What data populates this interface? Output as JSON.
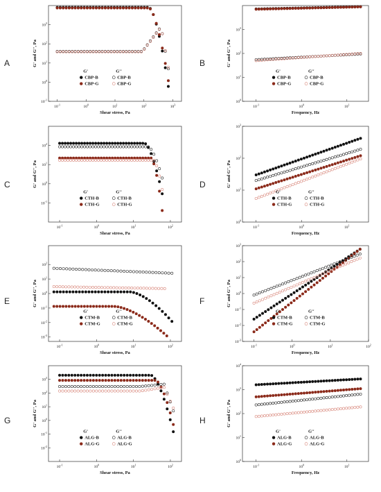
{
  "figure": {
    "colors": {
      "B_filled": "#111111",
      "G_filled": "#8b2a1a",
      "B_open": "#222222",
      "G_open": "#d8867a"
    },
    "legend_headers": [
      "G'",
      "G''"
    ],
    "panel_labels": [
      "A",
      "B",
      "C",
      "D",
      "E",
      "F",
      "G",
      "H"
    ]
  },
  "chart_data": [
    {
      "panel": "A",
      "type": "scatter",
      "xscale": "log",
      "yscale": "log",
      "xlabel": "Shear stress, Pa",
      "ylabel": "G' and G'', Pa",
      "xlim": [
        0.05,
        2000
      ],
      "ylim": [
        0.1,
        10000
      ],
      "xticks": [
        "10^-1",
        "10^0",
        "10^1",
        "10^2",
        "10^3"
      ],
      "yticks": [
        "10^-1",
        "10^0",
        "10^1",
        "10^2",
        "10^3"
      ],
      "legend": [
        "CBP-B",
        "CBP-G"
      ],
      "series": [
        {
          "name": "CBP-B",
          "modulus": "G'",
          "x_range": [
            0.1,
            700
          ],
          "plateau": 8000,
          "drop_start": 150,
          "end_value": 0.6
        },
        {
          "name": "CBP-G",
          "modulus": "G'",
          "x_range": [
            0.1,
            700
          ],
          "plateau": 7500,
          "drop_start": 150,
          "end_value": 1.2
        },
        {
          "name": "CBP-B",
          "modulus": "G''",
          "x_range": [
            0.1,
            700
          ],
          "plateau": 40,
          "rise_to": 800,
          "end_value": 5
        },
        {
          "name": "CBP-G",
          "modulus": "G''",
          "x_range": [
            0.1,
            700
          ],
          "plateau": 38,
          "rise_to": 750,
          "end_value": 6
        }
      ]
    },
    {
      "panel": "B",
      "type": "scatter",
      "xscale": "log",
      "yscale": "log",
      "xlabel": "Frequency, Hz",
      "ylabel": "G' and G'', Pa",
      "xlim": [
        0.05,
        30
      ],
      "ylim": [
        1,
        10000
      ],
      "xticks": [
        "10^-1",
        "10^0",
        "10^1"
      ],
      "yticks": [
        "10^0",
        "10^1",
        "10^2",
        "10^3"
      ],
      "legend": [
        "CBP-B",
        "CBP-G"
      ],
      "series": [
        {
          "name": "CBP-B",
          "modulus": "G'",
          "x_range": [
            0.1,
            20
          ],
          "y_range": [
            7200,
            9000
          ]
        },
        {
          "name": "CBP-G",
          "modulus": "G'",
          "x_range": [
            0.1,
            20
          ],
          "y_range": [
            7000,
            8800
          ]
        },
        {
          "name": "CBP-B",
          "modulus": "G''",
          "x_range": [
            0.1,
            20
          ],
          "y_range": [
            55,
            95
          ]
        },
        {
          "name": "CBP-G",
          "modulus": "G''",
          "x_range": [
            0.1,
            20
          ],
          "y_range": [
            50,
            100
          ]
        }
      ]
    },
    {
      "panel": "C",
      "type": "scatter",
      "xscale": "log",
      "yscale": "log",
      "xlabel": "Shear stress, Pa",
      "ylabel": "G' and G'', Pa",
      "xlim": [
        0.05,
        200
      ],
      "ylim": [
        0.01,
        1000
      ],
      "xticks": [
        "10^-1",
        "10^0",
        "10^1",
        "10^2"
      ],
      "yticks": [
        "10^-1",
        "10^0",
        "10^1",
        "10^2"
      ],
      "legend": [
        "CTH-B",
        "CTH-G"
      ],
      "series": [
        {
          "name": "CTH-B",
          "modulus": "G'",
          "x_range": [
            0.1,
            60
          ],
          "plateau": 130,
          "drop_start": 20,
          "end_value": 0.3
        },
        {
          "name": "CTH-G",
          "modulus": "G'",
          "x_range": [
            0.1,
            60
          ],
          "plateau": 22,
          "drop_start": 30,
          "end_value": 0.04
        },
        {
          "name": "CTH-B",
          "modulus": "G''",
          "x_range": [
            0.1,
            60
          ],
          "plateau": 85,
          "drop_start": 25,
          "end_value": 2
        },
        {
          "name": "CTH-G",
          "modulus": "G''",
          "x_range": [
            0.1,
            60
          ],
          "plateau": 17,
          "drop_start": 35,
          "end_value": 0.5
        }
      ]
    },
    {
      "panel": "D",
      "type": "scatter",
      "xscale": "log",
      "yscale": "log",
      "xlabel": "Frequency, Hz",
      "ylabel": "G' and G'', Pa",
      "xlim": [
        0.05,
        30
      ],
      "ylim": [
        1,
        1000
      ],
      "xticks": [
        "10^-1",
        "10^0",
        "10^1"
      ],
      "yticks": [
        "10^0",
        "10^1",
        "10^2",
        "10^3"
      ],
      "legend": [
        "CTH-B",
        "CTH-G"
      ],
      "series": [
        {
          "name": "CTH-B",
          "modulus": "G'",
          "x_range": [
            0.1,
            20
          ],
          "y_range": [
            30,
            420
          ]
        },
        {
          "name": "CTH-B",
          "modulus": "G''",
          "x_range": [
            0.1,
            20
          ],
          "y_range": [
            20,
            190
          ]
        },
        {
          "name": "CTH-G",
          "modulus": "G'",
          "x_range": [
            0.1,
            20
          ],
          "y_range": [
            11,
            120
          ]
        },
        {
          "name": "CTH-G",
          "modulus": "G''",
          "x_range": [
            0.1,
            20
          ],
          "y_range": [
            5.5,
            95
          ]
        }
      ]
    },
    {
      "panel": "E",
      "type": "scatter",
      "xscale": "log",
      "yscale": "log",
      "xlabel": "Shear stress, Pa",
      "ylabel": "G' and G'', Pa",
      "xlim": [
        0.05,
        200
      ],
      "ylim": [
        0.0005,
        2000
      ],
      "xticks": [
        "10^-1",
        "10^0",
        "10^1",
        "10^2"
      ],
      "yticks": [
        "10^-3",
        "10^-2",
        "10^-1",
        "10^0",
        "10^1",
        "10^2"
      ],
      "legend": [
        "CTM-B",
        "CTM-G"
      ],
      "series": [
        {
          "name": "CTM-B",
          "modulus": "G''",
          "x_range": [
            0.07,
            110
          ],
          "plateau": 55,
          "end_value": 25
        },
        {
          "name": "CTM-G",
          "modulus": "G''",
          "x_range": [
            0.07,
            70
          ],
          "plateau": 3,
          "end_value": 2.2
        },
        {
          "name": "CTM-B",
          "modulus": "G'",
          "x_range": [
            0.07,
            110
          ],
          "plateau": 1.3,
          "drop_start": 8,
          "end_value": 0.012
        },
        {
          "name": "CTM-G",
          "modulus": "G'",
          "x_range": [
            0.07,
            80
          ],
          "plateau": 0.13,
          "drop_start": 3,
          "end_value": 0.0012
        }
      ]
    },
    {
      "panel": "F",
      "type": "scatter",
      "xscale": "log",
      "yscale": "log",
      "xlabel": "Frequency, Hz",
      "ylabel": "G' and G'', Pa",
      "xlim": [
        0.05,
        100
      ],
      "ylim": [
        0.001,
        1000
      ],
      "xticks": [
        "10^-1",
        "10^0",
        "10^1",
        "10^2"
      ],
      "yticks": [
        "10^-3",
        "10^-2",
        "10^-1",
        "10^0",
        "10^1",
        "10^2",
        "10^3"
      ],
      "legend": [
        "CTM-B",
        "CTM-G"
      ],
      "series": [
        {
          "name": "CTM-B",
          "modulus": "G'",
          "x_range": [
            0.1,
            60
          ],
          "y_range": [
            0.025,
            600
          ]
        },
        {
          "name": "CTM-G",
          "modulus": "G'",
          "x_range": [
            0.1,
            60
          ],
          "y_range": [
            0.004,
            600
          ]
        },
        {
          "name": "CTM-B",
          "modulus": "G''",
          "x_range": [
            0.1,
            60
          ],
          "y_range": [
            0.8,
            300
          ]
        },
        {
          "name": "CTM-G",
          "modulus": "G''",
          "x_range": [
            0.1,
            60
          ],
          "y_range": [
            0.25,
            170
          ]
        }
      ]
    },
    {
      "panel": "G",
      "type": "scatter",
      "xscale": "log",
      "yscale": "log",
      "xlabel": "Shear stress, Pa",
      "ylabel": "G' and G'', Pa",
      "xlim": [
        0.05,
        200
      ],
      "ylim": [
        0.001,
        10000
      ],
      "xticks": [
        "10^-1",
        "10^0",
        "10^1",
        "10^2"
      ],
      "yticks": [
        "10^-2",
        "10^-1",
        "10^0",
        "10^1",
        "10^2",
        "10^3"
      ],
      "legend": [
        "ALG-B",
        "ALG-G"
      ],
      "series": [
        {
          "name": "ALG-B",
          "modulus": "G'",
          "x_range": [
            0.1,
            120
          ],
          "plateau": 2000,
          "drop_start": 30,
          "end_value": 0.15
        },
        {
          "name": "ALG-G",
          "modulus": "G'",
          "x_range": [
            0.1,
            120
          ],
          "plateau": 850,
          "drop_start": 40,
          "end_value": 0.5
        },
        {
          "name": "ALG-B",
          "modulus": "G''",
          "x_range": [
            0.1,
            120
          ],
          "plateau": 300,
          "rise_to": 450,
          "end_value": 5
        },
        {
          "name": "ALG-G",
          "modulus": "G''",
          "x_range": [
            0.1,
            120
          ],
          "plateau": 140,
          "rise_to": 260,
          "end_value": 8
        }
      ]
    },
    {
      "panel": "H",
      "type": "scatter",
      "xscale": "log",
      "yscale": "log",
      "xlabel": "Frequency, Hz",
      "ylabel": "G' and G'', Pa",
      "xlim": [
        0.05,
        30
      ],
      "ylim": [
        1,
        10000
      ],
      "xticks": [
        "10^-1",
        "10^0",
        "10^1"
      ],
      "yticks": [
        "10^0",
        "10^1",
        "10^2",
        "10^3",
        "10^4"
      ],
      "legend": [
        "ALG-B",
        "ALG-G"
      ],
      "series": [
        {
          "name": "ALG-B",
          "modulus": "G'",
          "x_range": [
            0.1,
            20
          ],
          "y_range": [
            1600,
            2800
          ]
        },
        {
          "name": "ALG-G",
          "modulus": "G'",
          "x_range": [
            0.1,
            20
          ],
          "y_range": [
            500,
            1100
          ]
        },
        {
          "name": "ALG-B",
          "modulus": "G''",
          "x_range": [
            0.1,
            20
          ],
          "y_range": [
            230,
            650
          ]
        },
        {
          "name": "ALG-G",
          "modulus": "G''",
          "x_range": [
            0.1,
            20
          ],
          "y_range": [
            75,
            190
          ]
        }
      ]
    }
  ]
}
